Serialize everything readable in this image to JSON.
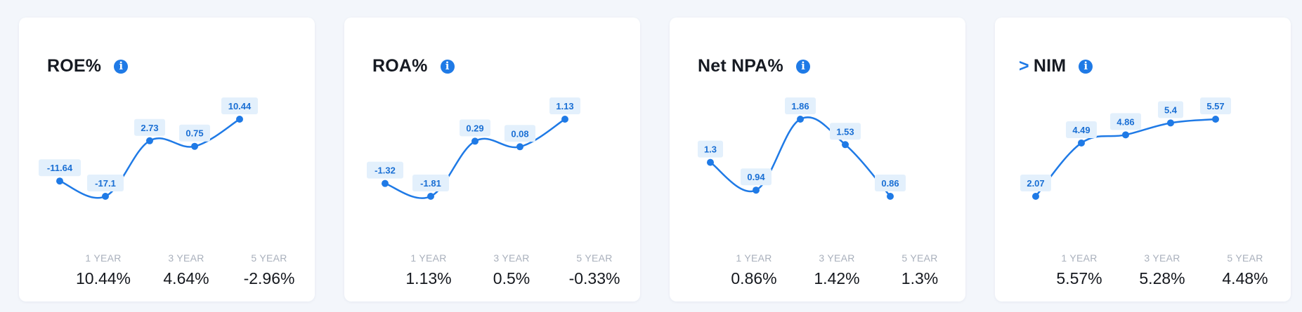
{
  "colors": {
    "accent": "#1f7ae6",
    "line": "#1f7ae6",
    "label_bg": "#e3f0fc",
    "label_text": "#1a6fd4"
  },
  "cards": [
    {
      "title": "ROE%",
      "prefix": "",
      "stats": [
        {
          "label": "1 YEAR",
          "value": "10.44%"
        },
        {
          "label": "3 YEAR",
          "value": "4.64%"
        },
        {
          "label": "5 YEAR",
          "value": "-2.96%"
        }
      ]
    },
    {
      "title": "ROA%",
      "prefix": "",
      "stats": [
        {
          "label": "1 YEAR",
          "value": "1.13%"
        },
        {
          "label": "3 YEAR",
          "value": "0.5%"
        },
        {
          "label": "5 YEAR",
          "value": "-0.33%"
        }
      ]
    },
    {
      "title": "Net NPA%",
      "prefix": "",
      "stats": [
        {
          "label": "1 YEAR",
          "value": "0.86%"
        },
        {
          "label": "3 YEAR",
          "value": "1.42%"
        },
        {
          "label": "5 YEAR",
          "value": "1.3%"
        }
      ]
    },
    {
      "title": "NIM",
      "prefix": ">",
      "stats": [
        {
          "label": "1 YEAR",
          "value": "5.57%"
        },
        {
          "label": "3 YEAR",
          "value": "5.28%"
        },
        {
          "label": "5 YEAR",
          "value": "4.48%"
        }
      ]
    }
  ],
  "chart_data": [
    {
      "type": "line",
      "values": [
        -11.64,
        -17.1,
        2.73,
        0.75,
        10.44
      ],
      "labels": [
        "-11.64",
        "-17.1",
        "2.73",
        "0.75",
        "10.44"
      ]
    },
    {
      "type": "line",
      "values": [
        -1.32,
        -1.81,
        0.29,
        0.08,
        1.13
      ],
      "labels": [
        "-1.32",
        "-1.81",
        "0.29",
        "0.08",
        "1.13"
      ]
    },
    {
      "type": "line",
      "values": [
        1.3,
        0.94,
        1.86,
        1.53,
        0.86
      ],
      "labels": [
        "1.3",
        "0.94",
        "1.86",
        "1.53",
        "0.86"
      ]
    },
    {
      "type": "line",
      "values": [
        2.07,
        4.49,
        4.86,
        5.4,
        5.57
      ],
      "labels": [
        "2.07",
        "4.49",
        "4.86",
        "5.4",
        "5.57"
      ]
    }
  ]
}
